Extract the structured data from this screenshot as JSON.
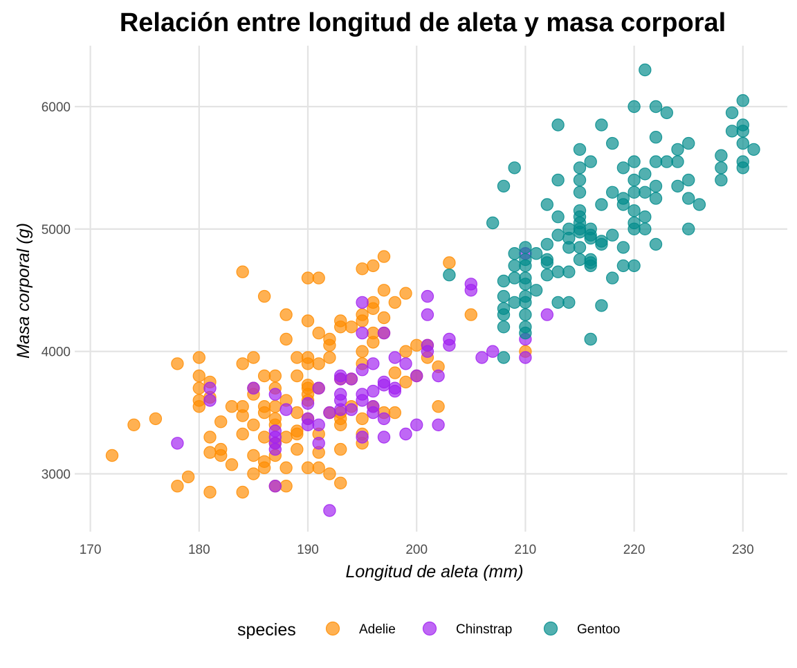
{
  "chart_data": {
    "type": "scatter",
    "title": "Relación entre longitud de aleta y masa corporal",
    "xlabel": "Longitud de aleta (mm)",
    "ylabel": "Masa corporal (g)",
    "xlim": [
      170,
      233
    ],
    "ylim": [
      2550,
      6450
    ],
    "xticks": [
      170,
      180,
      190,
      200,
      210,
      220,
      230
    ],
    "yticks": [
      3000,
      4000,
      5000,
      6000
    ],
    "grid": true,
    "legend": {
      "title": "species",
      "position": "bottom"
    },
    "series": [
      {
        "name": "Adelie",
        "color": "#FF8C00",
        "points": [
          [
            172,
            3150
          ],
          [
            174,
            3400
          ],
          [
            176,
            3450
          ],
          [
            178,
            3900
          ],
          [
            178,
            2900
          ],
          [
            179,
            2975
          ],
          [
            180,
            3950
          ],
          [
            180,
            3800
          ],
          [
            180,
            3700
          ],
          [
            180,
            3600
          ],
          [
            180,
            3550
          ],
          [
            181,
            3750
          ],
          [
            181,
            3625
          ],
          [
            181,
            3300
          ],
          [
            181,
            3175
          ],
          [
            181,
            2850
          ],
          [
            182,
            3425
          ],
          [
            182,
            3200
          ],
          [
            182,
            3150
          ],
          [
            183,
            3550
          ],
          [
            183,
            3075
          ],
          [
            184,
            4650
          ],
          [
            184,
            3900
          ],
          [
            184,
            3550
          ],
          [
            184,
            3475
          ],
          [
            184,
            3325
          ],
          [
            184,
            2850
          ],
          [
            185,
            3950
          ],
          [
            185,
            3700
          ],
          [
            185,
            3650
          ],
          [
            185,
            3400
          ],
          [
            185,
            3150
          ],
          [
            185,
            3000
          ],
          [
            186,
            4450
          ],
          [
            186,
            3800
          ],
          [
            186,
            3550
          ],
          [
            186,
            3500
          ],
          [
            186,
            3300
          ],
          [
            186,
            3100
          ],
          [
            186,
            3050
          ],
          [
            187,
            3800
          ],
          [
            187,
            3700
          ],
          [
            187,
            3550
          ],
          [
            187,
            3450
          ],
          [
            187,
            3400
          ],
          [
            187,
            3250
          ],
          [
            187,
            3150
          ],
          [
            187,
            2900
          ],
          [
            188,
            4300
          ],
          [
            188,
            4100
          ],
          [
            188,
            3600
          ],
          [
            188,
            3300
          ],
          [
            188,
            3050
          ],
          [
            188,
            2900
          ],
          [
            189,
            3950
          ],
          [
            189,
            3800
          ],
          [
            189,
            3500
          ],
          [
            189,
            3350
          ],
          [
            189,
            3325
          ],
          [
            189,
            3200
          ],
          [
            190,
            4600
          ],
          [
            190,
            4250
          ],
          [
            190,
            3950
          ],
          [
            190,
            3900
          ],
          [
            190,
            3725
          ],
          [
            190,
            3700
          ],
          [
            190,
            3650
          ],
          [
            190,
            3600
          ],
          [
            190,
            3450
          ],
          [
            190,
            3050
          ],
          [
            191,
            4600
          ],
          [
            191,
            4150
          ],
          [
            191,
            3900
          ],
          [
            191,
            3700
          ],
          [
            191,
            3325
          ],
          [
            191,
            3175
          ],
          [
            191,
            3050
          ],
          [
            192,
            4100
          ],
          [
            192,
            4050
          ],
          [
            192,
            3950
          ],
          [
            192,
            3500
          ],
          [
            192,
            3000
          ],
          [
            193,
            4250
          ],
          [
            193,
            4200
          ],
          [
            193,
            3775
          ],
          [
            193,
            3500
          ],
          [
            193,
            3450
          ],
          [
            193,
            3400
          ],
          [
            193,
            3200
          ],
          [
            193,
            2925
          ],
          [
            194,
            4200
          ],
          [
            194,
            3775
          ],
          [
            194,
            3550
          ],
          [
            195,
            4675
          ],
          [
            195,
            4300
          ],
          [
            195,
            4250
          ],
          [
            195,
            4000
          ],
          [
            195,
            3900
          ],
          [
            195,
            3450
          ],
          [
            195,
            3325
          ],
          [
            195,
            3250
          ],
          [
            196,
            4700
          ],
          [
            196,
            4400
          ],
          [
            196,
            4350
          ],
          [
            196,
            4150
          ],
          [
            196,
            4075
          ],
          [
            196,
            3550
          ],
          [
            197,
            4775
          ],
          [
            197,
            4500
          ],
          [
            197,
            4275
          ],
          [
            197,
            4150
          ],
          [
            197,
            3500
          ],
          [
            198,
            4400
          ],
          [
            198,
            3825
          ],
          [
            198,
            3500
          ],
          [
            199,
            4475
          ],
          [
            199,
            3750
          ],
          [
            199,
            4000
          ],
          [
            200,
            4050
          ],
          [
            200,
            3800
          ],
          [
            201,
            4050
          ],
          [
            201,
            3950
          ],
          [
            202,
            3875
          ],
          [
            202,
            3550
          ],
          [
            203,
            4725
          ],
          [
            205,
            4300
          ],
          [
            210,
            4000
          ]
        ]
      },
      {
        "name": "Chinstrap",
        "color": "#A020F0",
        "points": [
          [
            178,
            3250
          ],
          [
            181,
            3700
          ],
          [
            181,
            3600
          ],
          [
            185,
            3700
          ],
          [
            187,
            3650
          ],
          [
            187,
            3350
          ],
          [
            187,
            3300
          ],
          [
            187,
            3250
          ],
          [
            187,
            3200
          ],
          [
            187,
            2900
          ],
          [
            188,
            3525
          ],
          [
            190,
            3575
          ],
          [
            190,
            3450
          ],
          [
            190,
            3400
          ],
          [
            191,
            3700
          ],
          [
            191,
            3400
          ],
          [
            191,
            3250
          ],
          [
            192,
            3500
          ],
          [
            192,
            2700
          ],
          [
            193,
            3800
          ],
          [
            193,
            3775
          ],
          [
            193,
            3650
          ],
          [
            193,
            3600
          ],
          [
            193,
            3525
          ],
          [
            194,
            3775
          ],
          [
            194,
            3525
          ],
          [
            195,
            4400
          ],
          [
            195,
            4150
          ],
          [
            195,
            3850
          ],
          [
            195,
            3650
          ],
          [
            195,
            3600
          ],
          [
            195,
            3300
          ],
          [
            196,
            3900
          ],
          [
            196,
            3675
          ],
          [
            196,
            3550
          ],
          [
            196,
            3500
          ],
          [
            197,
            4150
          ],
          [
            197,
            3750
          ],
          [
            197,
            3725
          ],
          [
            197,
            3450
          ],
          [
            197,
            3300
          ],
          [
            198,
            3950
          ],
          [
            198,
            3700
          ],
          [
            198,
            3675
          ],
          [
            199,
            3900
          ],
          [
            199,
            3325
          ],
          [
            200,
            3800
          ],
          [
            200,
            3400
          ],
          [
            201,
            4450
          ],
          [
            201,
            4300
          ],
          [
            201,
            4050
          ],
          [
            201,
            4000
          ],
          [
            202,
            3800
          ],
          [
            202,
            3400
          ],
          [
            203,
            4100
          ],
          [
            203,
            4050
          ],
          [
            205,
            4550
          ],
          [
            205,
            4500
          ],
          [
            206,
            3950
          ],
          [
            207,
            4000
          ],
          [
            210,
            4800
          ],
          [
            210,
            4100
          ],
          [
            210,
            3950
          ],
          [
            212,
            4300
          ]
        ]
      },
      {
        "name": "Gentoo",
        "color": "#008B8B",
        "points": [
          [
            203,
            4625
          ],
          [
            207,
            5050
          ],
          [
            208,
            5350
          ],
          [
            208,
            4575
          ],
          [
            208,
            4450
          ],
          [
            208,
            4350
          ],
          [
            208,
            4300
          ],
          [
            208,
            4200
          ],
          [
            208,
            3950
          ],
          [
            209,
            5500
          ],
          [
            209,
            4800
          ],
          [
            209,
            4700
          ],
          [
            209,
            4600
          ],
          [
            209,
            4400
          ],
          [
            210,
            4850
          ],
          [
            210,
            4750
          ],
          [
            210,
            4700
          ],
          [
            210,
            4600
          ],
          [
            210,
            4550
          ],
          [
            210,
            4450
          ],
          [
            210,
            4400
          ],
          [
            210,
            4300
          ],
          [
            210,
            4200
          ],
          [
            210,
            4150
          ],
          [
            211,
            4800
          ],
          [
            211,
            4500
          ],
          [
            212,
            5200
          ],
          [
            212,
            4875
          ],
          [
            212,
            4750
          ],
          [
            212,
            4725
          ],
          [
            212,
            4625
          ],
          [
            213,
            5850
          ],
          [
            213,
            5400
          ],
          [
            213,
            5100
          ],
          [
            213,
            4950
          ],
          [
            213,
            4650
          ],
          [
            213,
            4400
          ],
          [
            214,
            5000
          ],
          [
            214,
            4925
          ],
          [
            214,
            4850
          ],
          [
            214,
            4650
          ],
          [
            214,
            4400
          ],
          [
            215,
            5650
          ],
          [
            215,
            5500
          ],
          [
            215,
            5400
          ],
          [
            215,
            5300
          ],
          [
            215,
            5150
          ],
          [
            215,
            5100
          ],
          [
            215,
            5050
          ],
          [
            215,
            5000
          ],
          [
            215,
            4975
          ],
          [
            215,
            4850
          ],
          [
            215,
            4750
          ],
          [
            216,
            5550
          ],
          [
            216,
            5000
          ],
          [
            216,
            4950
          ],
          [
            216,
            4925
          ],
          [
            216,
            4750
          ],
          [
            216,
            4725
          ],
          [
            216,
            4700
          ],
          [
            216,
            4100
          ],
          [
            217,
            5850
          ],
          [
            217,
            5200
          ],
          [
            217,
            4900
          ],
          [
            217,
            4875
          ],
          [
            217,
            4375
          ],
          [
            218,
            5700
          ],
          [
            218,
            5300
          ],
          [
            218,
            4950
          ],
          [
            218,
            4600
          ],
          [
            219,
            5500
          ],
          [
            219,
            5250
          ],
          [
            219,
            5200
          ],
          [
            219,
            4850
          ],
          [
            219,
            4700
          ],
          [
            220,
            6000
          ],
          [
            220,
            5550
          ],
          [
            220,
            5400
          ],
          [
            220,
            5300
          ],
          [
            220,
            5150
          ],
          [
            220,
            5050
          ],
          [
            220,
            5000
          ],
          [
            220,
            4700
          ],
          [
            221,
            6300
          ],
          [
            221,
            5450
          ],
          [
            221,
            5300
          ],
          [
            221,
            5100
          ],
          [
            221,
            5000
          ],
          [
            222,
            6000
          ],
          [
            222,
            5750
          ],
          [
            222,
            5550
          ],
          [
            222,
            5350
          ],
          [
            222,
            5250
          ],
          [
            222,
            4875
          ],
          [
            223,
            5950
          ],
          [
            223,
            5550
          ],
          [
            224,
            5650
          ],
          [
            224,
            5550
          ],
          [
            224,
            5350
          ],
          [
            225,
            5700
          ],
          [
            225,
            5400
          ],
          [
            225,
            5250
          ],
          [
            225,
            5000
          ],
          [
            226,
            5200
          ],
          [
            228,
            5600
          ],
          [
            228,
            5500
          ],
          [
            228,
            5400
          ],
          [
            229,
            5950
          ],
          [
            229,
            5800
          ],
          [
            230,
            6050
          ],
          [
            230,
            5850
          ],
          [
            230,
            5800
          ],
          [
            230,
            5700
          ],
          [
            230,
            5550
          ],
          [
            230,
            5500
          ],
          [
            231,
            5650
          ]
        ]
      }
    ]
  }
}
